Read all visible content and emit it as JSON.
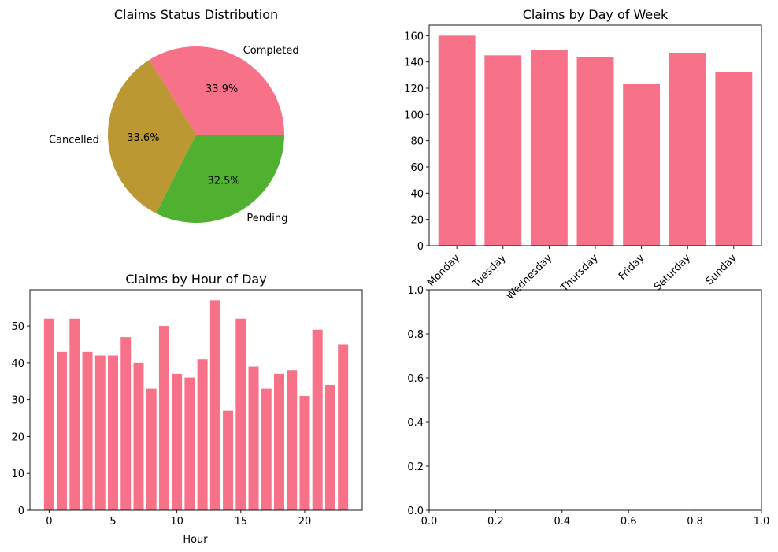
{
  "chart_data": [
    {
      "type": "pie",
      "title": "Claims Status Distribution",
      "slices": [
        {
          "label": "Completed",
          "pct_label": "33.9%",
          "value": 33.9,
          "color": "#f77189"
        },
        {
          "label": "Cancelled",
          "pct_label": "33.6%",
          "value": 33.6,
          "color": "#bb9832"
        },
        {
          "label": "Pending",
          "pct_label": "32.5%",
          "value": 32.5,
          "color": "#50b131"
        }
      ]
    },
    {
      "type": "bar",
      "title": "Claims by Day of Week",
      "categories": [
        "Monday",
        "Tuesday",
        "Wednesday",
        "Thursday",
        "Friday",
        "Saturday",
        "Sunday"
      ],
      "values": [
        160,
        145,
        149,
        144,
        123,
        147,
        132
      ],
      "ylim": [
        0,
        168
      ],
      "yticks": [
        0,
        20,
        40,
        60,
        80,
        100,
        120,
        140,
        160
      ],
      "color": "#f77189",
      "xlabel": "",
      "ylabel": ""
    },
    {
      "type": "bar",
      "title": "Claims by Hour of Day",
      "x": [
        0,
        1,
        2,
        3,
        4,
        5,
        6,
        7,
        8,
        9,
        10,
        11,
        12,
        13,
        14,
        15,
        16,
        17,
        18,
        19,
        20,
        21,
        22,
        23
      ],
      "values": [
        52,
        43,
        52,
        43,
        42,
        42,
        47,
        40,
        33,
        50,
        37,
        36,
        41,
        57,
        27,
        52,
        39,
        33,
        37,
        38,
        31,
        49,
        34,
        45
      ],
      "xlim": [
        -1.5,
        24.5
      ],
      "ylim": [
        0,
        59.85
      ],
      "xticks": [
        0,
        5,
        10,
        15,
        20
      ],
      "yticks": [
        0,
        10,
        20,
        30,
        40,
        50
      ],
      "xlabel": "Hour",
      "ylabel": "",
      "color": "#f77189"
    },
    {
      "type": "scatter",
      "title": "",
      "x": [],
      "y": [],
      "xlim": [
        0,
        1
      ],
      "ylim": [
        0,
        1
      ],
      "xticks": [
        "0.0",
        "0.2",
        "0.4",
        "0.6",
        "0.8",
        "1.0"
      ],
      "yticks": [
        "0.0",
        "0.2",
        "0.4",
        "0.6",
        "0.8",
        "1.0"
      ]
    }
  ]
}
